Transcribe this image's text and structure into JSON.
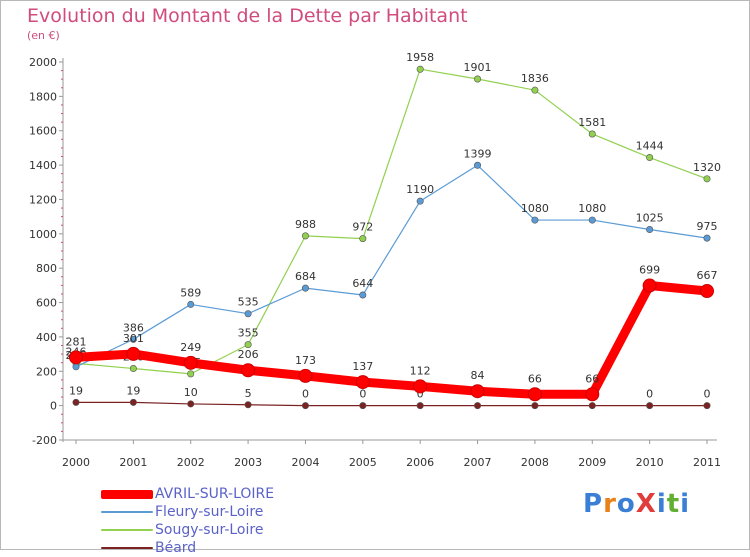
{
  "title": "Evolution du Montant de la Dette par Habitant",
  "subtitle": "(en €)",
  "brand": "ProXiti",
  "chart_data": {
    "type": "line",
    "title": "Evolution du Montant de la Dette par Habitant",
    "subtitle": "(en €)",
    "x": [
      "2000",
      "2001",
      "2002",
      "2003",
      "2004",
      "2005",
      "2006",
      "2007",
      "2008",
      "2009",
      "2010",
      "2011"
    ],
    "ylim": [
      -200,
      2000
    ],
    "yticks": [
      -200,
      0,
      200,
      400,
      600,
      800,
      1000,
      1200,
      1400,
      1600,
      1800,
      2000
    ],
    "grid": false,
    "legend_position": "bottom-left",
    "series": [
      {
        "name": "AVRIL-SUR-LOIRE",
        "color": "#ff0000",
        "values": [
          281,
          301,
          249,
          206,
          173,
          137,
          112,
          84,
          66,
          66,
          699,
          667
        ]
      },
      {
        "name": "Fleury-sur-Loire",
        "color": "#5b9bd5",
        "values": [
          226,
          386,
          589,
          535,
          684,
          644,
          1190,
          1399,
          1080,
          1080,
          1025,
          975
        ]
      },
      {
        "name": "Sougy-sur-Loire",
        "color": "#92d050",
        "values": [
          246,
          216,
          185,
          355,
          988,
          972,
          1958,
          1901,
          1836,
          1581,
          1444,
          1320
        ]
      },
      {
        "name": "Béard",
        "color": "#7b2323",
        "values": [
          19,
          19,
          10,
          5,
          0,
          0,
          0,
          0,
          0,
          0,
          0,
          0
        ]
      }
    ]
  }
}
